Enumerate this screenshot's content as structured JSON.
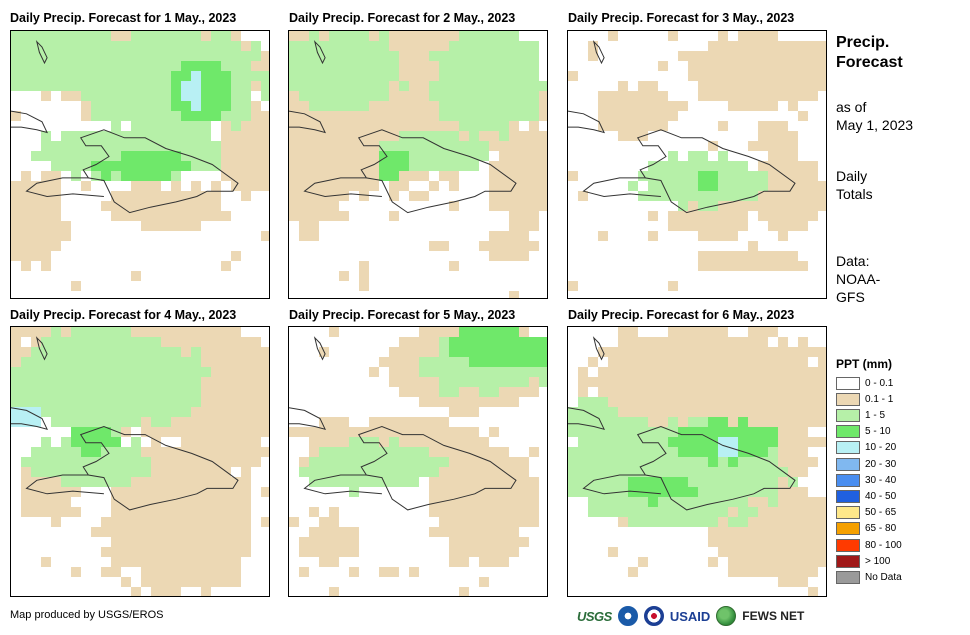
{
  "panels": [
    {
      "title": "Daily Precip. Forecast for 1 May., 2023"
    },
    {
      "title": "Daily Precip. Forecast for 2 May., 2023"
    },
    {
      "title": "Daily Precip. Forecast for 3 May., 2023"
    },
    {
      "title": "Daily Precip. Forecast for 4 May., 2023"
    },
    {
      "title": "Daily Precip. Forecast for 5 May., 2023"
    },
    {
      "title": "Daily Precip. Forecast for 6 May., 2023"
    }
  ],
  "sidebar": {
    "title_line1": "Precip.",
    "title_line2": "Forecast",
    "asof_line1": "as of",
    "asof_line2": "May 1, 2023",
    "daily_line1": "Daily",
    "daily_line2": "Totals",
    "data_line1": "Data:",
    "data_line2": "NOAA-",
    "data_line3": "GFS"
  },
  "legend": {
    "title": "PPT (mm)",
    "items": [
      {
        "label": "0 - 0.1",
        "color": "#ffffff"
      },
      {
        "label": "0.1 - 1",
        "color": "#ecd8b4"
      },
      {
        "label": "1 - 5",
        "color": "#b6f0a8"
      },
      {
        "label": "5 - 10",
        "color": "#6fe86a"
      },
      {
        "label": "10 - 20",
        "color": "#b8f0f4"
      },
      {
        "label": "20 - 30",
        "color": "#80b8f0"
      },
      {
        "label": "30 - 40",
        "color": "#4a8ef0"
      },
      {
        "label": "40 - 50",
        "color": "#2060e0"
      },
      {
        "label": "50 - 65",
        "color": "#ffe88a"
      },
      {
        "label": "65 - 80",
        "color": "#f5a000"
      },
      {
        "label": "80 - 100",
        "color": "#ff3a00"
      },
      {
        "label": "> 100",
        "color": "#a01818"
      },
      {
        "label": "No Data",
        "color": "#9a9a9a"
      }
    ]
  },
  "footer": {
    "credit": "Map produced by USGS/EROS",
    "logo_usgs": "USGS",
    "logo_usaid": "USAID",
    "logo_fews": "FEWS NET"
  }
}
